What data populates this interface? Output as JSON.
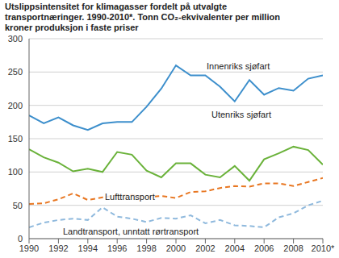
{
  "chart_data": {
    "type": "line",
    "title": "Utslippsintensitet for klimagasser fordelt på utvalgte transportnæringer. 1990-2010*. Tonn CO₂-ekvivalenter per million kroner produksjon i faste priser",
    "x": [
      1990,
      1991,
      1992,
      1993,
      1994,
      1995,
      1996,
      1997,
      1998,
      1999,
      2000,
      2001,
      2002,
      2003,
      2004,
      2005,
      2006,
      2007,
      2008,
      2009,
      2010
    ],
    "series": [
      {
        "name": "Innenriks sjøfart",
        "color": "#3d8fcc",
        "line_style": "solid",
        "values": [
          185,
          173,
          182,
          170,
          163,
          173,
          175,
          175,
          198,
          225,
          260,
          245,
          245,
          228,
          206,
          238,
          216,
          226,
          222,
          240,
          245
        ]
      },
      {
        "name": "Utenriks sjøfart",
        "color": "#6ab23a",
        "line_style": "solid",
        "values": [
          134,
          122,
          114,
          101,
          105,
          100,
          130,
          126,
          102,
          92,
          113,
          113,
          96,
          92,
          109,
          87,
          119,
          128,
          138,
          133,
          111
        ]
      },
      {
        "name": "Lufttransport",
        "color": "#e87722",
        "line_style": "dashed",
        "values": [
          52,
          53,
          59,
          68,
          58,
          62,
          65,
          66,
          62,
          64,
          61,
          70,
          71,
          76,
          79,
          78,
          83,
          83,
          79,
          85,
          91
        ]
      },
      {
        "name": "Landtransport, unntatt rørtransport",
        "color": "#8fb9dd",
        "line_style": "dashed",
        "values": [
          17,
          24,
          28,
          30,
          28,
          47,
          33,
          30,
          25,
          31,
          30,
          35,
          23,
          28,
          20,
          19,
          17,
          32,
          38,
          50,
          57
        ]
      }
    ],
    "xlim": [
      1990,
      2010
    ],
    "xticks": [
      1990,
      1992,
      1994,
      1996,
      1998,
      2000,
      2002,
      2004,
      2006,
      2008,
      {
        "value": 2010,
        "label": "2010*"
      }
    ],
    "ylim": [
      0,
      300
    ],
    "yticks": [
      0,
      50,
      100,
      150,
      200,
      250,
      300
    ],
    "grid": true
  }
}
